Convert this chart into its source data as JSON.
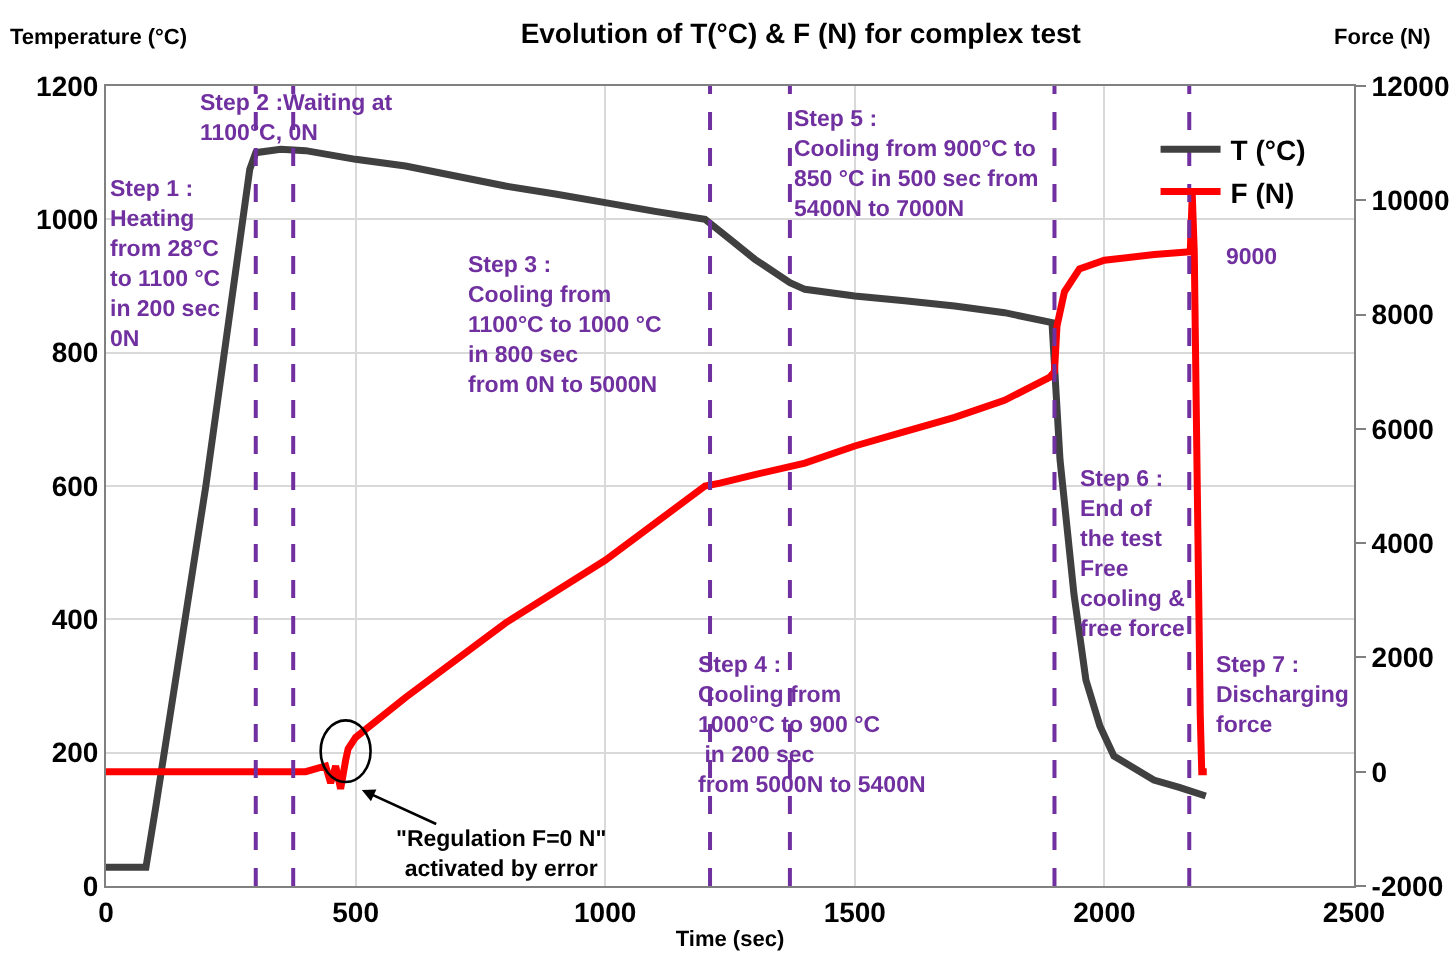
{
  "chart_data": {
    "type": "line",
    "title": "Evolution of T(°C) & F (N) for complex test",
    "xlabel": "Time (sec)",
    "ylabel": "Temperature (°C)",
    "y2label": "Force (N)",
    "xlim": [
      0,
      2500
    ],
    "xticks": [
      0,
      500,
      1000,
      1500,
      2000,
      2500
    ],
    "ylim": [
      0,
      1200
    ],
    "yticks": [
      0,
      200,
      400,
      600,
      800,
      1000,
      1200
    ],
    "y2lim": [
      -2000,
      12000
    ],
    "y2ticks": [
      -2000,
      0,
      2000,
      4000,
      6000,
      8000,
      10000,
      12000
    ],
    "grid": true,
    "legend": "top right",
    "line_style": "solid",
    "marker": "none",
    "series": [
      {
        "name": "T (°C)",
        "color": "#404040",
        "x": [
          0,
          80,
          100,
          200,
          288,
          300,
          350,
          400,
          500,
          600,
          700,
          800,
          900,
          1000,
          1100,
          1200,
          1250,
          1300,
          1370,
          1400,
          1500,
          1600,
          1700,
          1800,
          1895,
          1911,
          1939,
          1963,
          1991,
          2019,
          2099,
          2150,
          2203
        ],
        "values": [
          28,
          28,
          120,
          600,
          1075,
          1100,
          1105,
          1103,
          1090,
          1080,
          1065,
          1050,
          1038,
          1025,
          1012,
          1000,
          970,
          940,
          905,
          895,
          885,
          878,
          870,
          860,
          845,
          640,
          438,
          309,
          240,
          195,
          159,
          148,
          135
        ]
      },
      {
        "name": "F (N)",
        "color": "#ff0000",
        "axis": "y2",
        "x": [
          0,
          100,
          200,
          300,
          400,
          440,
          450,
          460,
          470,
          480,
          485,
          500,
          600,
          800,
          1000,
          1200,
          1230,
          1300,
          1400,
          1500,
          1600,
          1700,
          1800,
          1890,
          1900,
          1905,
          1920,
          1950,
          2000,
          2100,
          2172,
          2176,
          2180,
          2186,
          2192,
          2195,
          2205
        ],
        "values": [
          0,
          0,
          0,
          0,
          0,
          100,
          -200,
          100,
          -300,
          200,
          400,
          600,
          1300,
          2600,
          3700,
          5000,
          5050,
          5200,
          5400,
          5700,
          5950,
          6200,
          6500,
          6900,
          7000,
          7800,
          8400,
          8800,
          8950,
          9050,
          9100,
          10100,
          9100,
          5000,
          1000,
          0,
          0
        ]
      }
    ],
    "ref_lines": [
      {
        "axis": "x",
        "value": 300,
        "color": "#7030a0",
        "line_style": "dashed"
      },
      {
        "axis": "x",
        "value": 375,
        "color": "#7030a0",
        "line_style": "dashed"
      },
      {
        "axis": "x",
        "value": 1210,
        "color": "#7030a0",
        "line_style": "dashed"
      },
      {
        "axis": "x",
        "value": 1370,
        "color": "#7030a0",
        "line_style": "dashed"
      },
      {
        "axis": "x",
        "value": 1900,
        "color": "#7030a0",
        "line_style": "dashed"
      },
      {
        "axis": "x",
        "value": 2170,
        "color": "#7030a0",
        "line_style": "dashed"
      }
    ],
    "annotations": [
      "Step 1 :\nHeating\nfrom 28°C\nto 1100 °C\nin 200 sec\n0N",
      "Step 2 :Waiting at\n1100°C, 0N",
      "Step 3 :\nCooling from\n1100°C to 1000 °C\nin 800 sec\nfrom 0N to 5000N",
      "Step 4 :\nCooling from\n1000°C to 900 °C\n in 200 sec\nfrom 5000N to 5400N",
      "Step 5 :\nCooling from 900°C to\n850 °C in 500 sec from\n5400N to 7000N",
      "Step 6 :\nEnd of\nthe test\nFree\ncooling &\nfree force",
      "Step 7 :\nDischarging\nforce",
      "9000",
      "\"Regulation F=0 N\"\nactivated by error"
    ]
  }
}
